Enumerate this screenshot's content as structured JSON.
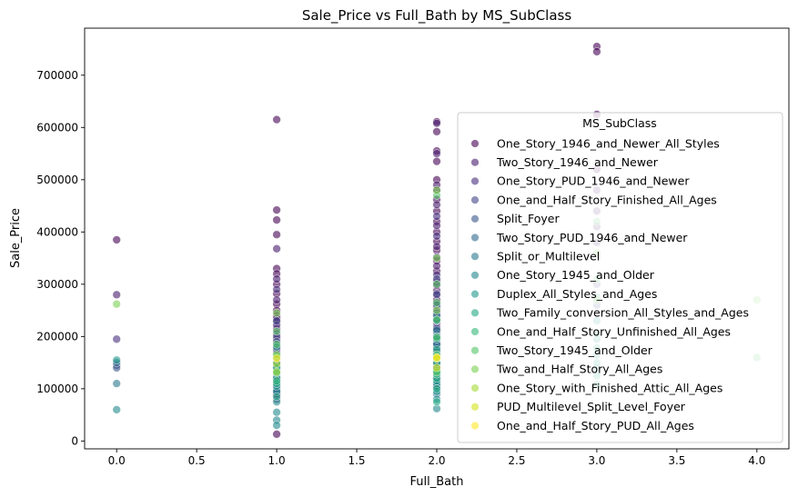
{
  "chart_data": {
    "type": "scatter",
    "title": "Sale_Price vs Full_Bath by MS_SubClass",
    "xlabel": "Full_Bath",
    "ylabel": "Sale_Price",
    "xlim": [
      -0.2,
      4.2
    ],
    "ylim": [
      -15000,
      790000
    ],
    "xticks": [
      "0.0",
      "0.5",
      "1.0",
      "1.5",
      "2.0",
      "2.5",
      "3.0",
      "3.5",
      "4.0"
    ],
    "yticks": [
      "0",
      "100000",
      "200000",
      "300000",
      "400000",
      "500000",
      "600000",
      "700000"
    ],
    "grid": false,
    "legend": {
      "title": "MS_SubClass",
      "placement": "right",
      "entries": [
        {
          "name": "One_Story_1946_and_Newer_All_Styles",
          "color": "#440154"
        },
        {
          "name": "Two_Story_1946_and_Newer",
          "color": "#481a6c"
        },
        {
          "name": "One_Story_PUD_1946_and_Newer",
          "color": "#472f7d"
        },
        {
          "name": "One_and_Half_Story_Finished_All_Ages",
          "color": "#414487"
        },
        {
          "name": "Split_Foyer",
          "color": "#39568c"
        },
        {
          "name": "Two_Story_PUD_1946_and_Newer",
          "color": "#31688e"
        },
        {
          "name": "Split_or_Multilevel",
          "color": "#2a788e"
        },
        {
          "name": "One_Story_1945_and_Older",
          "color": "#23888e"
        },
        {
          "name": "Duplex_All_Styles_and_Ages",
          "color": "#1f988b"
        },
        {
          "name": "Two_Family_conversion_All_Styles_and_Ages",
          "color": "#22a884"
        },
        {
          "name": "One_and_Half_Story_Unfinished_All_Ages",
          "color": "#35b779"
        },
        {
          "name": "Two_Story_1945_and_Older",
          "color": "#54c568"
        },
        {
          "name": "Two_and_Half_Story_All_Ages",
          "color": "#7ad151"
        },
        {
          "name": "One_Story_with_Finished_Attic_All_Ages",
          "color": "#a5db36"
        },
        {
          "name": "PUD_Multilevel_Split_Level_Foyer",
          "color": "#d2e21b"
        },
        {
          "name": "One_and_Half_Story_PUD_All_Ages",
          "color": "#fde725"
        }
      ]
    },
    "series": [
      {
        "name": "One_Story_1946_and_Newer_All_Styles",
        "points": [
          [
            0,
            385000
          ],
          [
            1,
            615000
          ],
          [
            1,
            442000
          ],
          [
            1,
            423000
          ],
          [
            1,
            395000
          ],
          [
            1,
            330000
          ],
          [
            1,
            320000
          ],
          [
            1,
            300000
          ],
          [
            1,
            282000
          ],
          [
            1,
            262000
          ],
          [
            1,
            250000
          ],
          [
            1,
            240000
          ],
          [
            1,
            228000
          ],
          [
            1,
            215000
          ],
          [
            1,
            195000
          ],
          [
            1,
            180000
          ],
          [
            1,
            165000
          ],
          [
            1,
            150000
          ],
          [
            1,
            140000
          ],
          [
            1,
            128000
          ],
          [
            1,
            118000
          ],
          [
            1,
            108000
          ],
          [
            1,
            98000
          ],
          [
            1,
            88000
          ],
          [
            1,
            13000
          ],
          [
            2,
            611000
          ],
          [
            2,
            592000
          ],
          [
            2,
            555000
          ],
          [
            2,
            535000
          ],
          [
            2,
            500000
          ],
          [
            2,
            480000
          ],
          [
            2,
            462000
          ],
          [
            2,
            440000
          ],
          [
            2,
            420000
          ],
          [
            2,
            400000
          ],
          [
            2,
            382000
          ],
          [
            2,
            365000
          ],
          [
            2,
            345000
          ],
          [
            2,
            325000
          ],
          [
            2,
            305000
          ],
          [
            2,
            288000
          ],
          [
            2,
            270000
          ],
          [
            2,
            255000
          ],
          [
            2,
            240000
          ],
          [
            2,
            225000
          ],
          [
            2,
            210000
          ],
          [
            2,
            195000
          ],
          [
            2,
            180000
          ],
          [
            2,
            165000
          ],
          [
            2,
            150000
          ],
          [
            2,
            135000
          ],
          [
            2,
            120000
          ],
          [
            2,
            105000
          ],
          [
            3,
            755000
          ],
          [
            3,
            745000
          ],
          [
            3,
            625000
          ],
          [
            3,
            520000
          ]
        ]
      },
      {
        "name": "Two_Story_1946_and_Newer",
        "points": [
          [
            0,
            280000
          ],
          [
            1,
            368000
          ],
          [
            1,
            310000
          ],
          [
            1,
            270000
          ],
          [
            1,
            235000
          ],
          [
            1,
            205000
          ],
          [
            1,
            160000
          ],
          [
            1,
            130000
          ],
          [
            1,
            90000
          ],
          [
            2,
            608000
          ],
          [
            2,
            550000
          ],
          [
            2,
            490000
          ],
          [
            2,
            452000
          ],
          [
            2,
            412000
          ],
          [
            2,
            372000
          ],
          [
            2,
            335000
          ],
          [
            2,
            298000
          ],
          [
            2,
            262000
          ],
          [
            2,
            232000
          ],
          [
            2,
            202000
          ],
          [
            2,
            172000
          ],
          [
            2,
            142000
          ],
          [
            3,
            480000
          ],
          [
            3,
            440000
          ],
          [
            3,
            410000
          ],
          [
            3,
            380000
          ]
        ]
      },
      {
        "name": "One_Story_PUD_1946_and_Newer",
        "points": [
          [
            0,
            195000
          ],
          [
            1,
            290000
          ],
          [
            1,
            222000
          ],
          [
            1,
            172000
          ],
          [
            2,
            430000
          ],
          [
            2,
            392000
          ],
          [
            2,
            352000
          ],
          [
            2,
            318000
          ],
          [
            2,
            282000
          ],
          [
            2,
            248000
          ],
          [
            2,
            218000
          ],
          [
            2,
            188000
          ],
          [
            2,
            158000
          ]
        ]
      },
      {
        "name": "One_and_Half_Story_Finished_All_Ages",
        "points": [
          [
            0,
            145000
          ],
          [
            1,
            230000
          ],
          [
            1,
            200000
          ],
          [
            1,
            175000
          ],
          [
            1,
            145000
          ],
          [
            1,
            120000
          ],
          [
            1,
            100000
          ],
          [
            1,
            80000
          ],
          [
            2,
            310000
          ],
          [
            2,
            280000
          ],
          [
            2,
            245000
          ],
          [
            2,
            215000
          ],
          [
            2,
            185000
          ],
          [
            2,
            155000
          ],
          [
            2,
            130000
          ],
          [
            3,
            300000
          ],
          [
            3,
            260000
          ]
        ]
      },
      {
        "name": "Split_Foyer",
        "points": [
          [
            0,
            140000
          ],
          [
            1,
            190000
          ],
          [
            1,
            168000
          ],
          [
            1,
            152000
          ],
          [
            1,
            138000
          ],
          [
            2,
            260000
          ],
          [
            2,
            232000
          ],
          [
            2,
            205000
          ],
          [
            2,
            178000
          ]
        ]
      },
      {
        "name": "Two_Story_PUD_1946_and_Newer",
        "points": [
          [
            0,
            150000
          ],
          [
            1,
            125000
          ],
          [
            1,
            112000
          ],
          [
            1,
            95000
          ],
          [
            2,
            200000
          ],
          [
            2,
            170000
          ],
          [
            2,
            148000
          ],
          [
            2,
            125000
          ],
          [
            2,
            105000
          ],
          [
            2,
            90000
          ]
        ]
      },
      {
        "name": "Split_or_Multilevel",
        "points": [
          [
            0,
            110000
          ],
          [
            1,
            158000
          ],
          [
            1,
            142000
          ],
          [
            1,
            122000
          ],
          [
            2,
            240000
          ],
          [
            2,
            212000
          ],
          [
            2,
            185000
          ],
          [
            2,
            162000
          ],
          [
            2,
            140000
          ]
        ]
      },
      {
        "name": "One_Story_1945_and_Older",
        "points": [
          [
            0,
            60000
          ],
          [
            1,
            180000
          ],
          [
            1,
            150000
          ],
          [
            1,
            120000
          ],
          [
            1,
            95000
          ],
          [
            1,
            75000
          ],
          [
            1,
            55000
          ],
          [
            1,
            40000
          ],
          [
            1,
            30000
          ],
          [
            2,
            200000
          ],
          [
            2,
            160000
          ],
          [
            2,
            110000
          ],
          [
            2,
            80000
          ],
          [
            2,
            62000
          ]
        ]
      },
      {
        "name": "Duplex_All_Styles_and_Ages",
        "points": [
          [
            0,
            155000
          ],
          [
            1,
            135000
          ],
          [
            1,
            105000
          ],
          [
            2,
            230000
          ],
          [
            2,
            195000
          ],
          [
            2,
            165000
          ],
          [
            2,
            135000
          ],
          [
            2,
            115000
          ],
          [
            2,
            95000
          ],
          [
            3,
            275000
          ],
          [
            3,
            230000
          ],
          [
            3,
            195000
          ],
          [
            3,
            165000
          ],
          [
            3,
            140000
          ]
        ]
      },
      {
        "name": "Two_Family_conversion_All_Styles_and_Ages",
        "points": [
          [
            1,
            140000
          ],
          [
            1,
            110000
          ],
          [
            1,
            85000
          ],
          [
            2,
            175000
          ],
          [
            2,
            150000
          ],
          [
            2,
            120000
          ],
          [
            2,
            100000
          ],
          [
            2,
            75000
          ],
          [
            3,
            205000
          ],
          [
            3,
            178000
          ],
          [
            3,
            150000
          ],
          [
            3,
            125000
          ],
          [
            3,
            108000
          ]
        ]
      },
      {
        "name": "One_and_Half_Story_Unfinished_All_Ages",
        "points": [
          [
            1,
            160000
          ],
          [
            1,
            130000
          ],
          [
            1,
            115000
          ],
          [
            2,
            128000
          ]
        ]
      },
      {
        "name": "Two_Story_1945_and_Older",
        "points": [
          [
            1,
            210000
          ],
          [
            1,
            185000
          ],
          [
            1,
            162000
          ],
          [
            2,
            470000
          ],
          [
            2,
            300000
          ],
          [
            2,
            265000
          ],
          [
            2,
            232000
          ],
          [
            2,
            198000
          ],
          [
            2,
            165000
          ],
          [
            2,
            132000
          ],
          [
            3,
            420000
          ],
          [
            3,
            310000
          ],
          [
            4,
            160000
          ]
        ]
      },
      {
        "name": "Two_and_Half_Story_All_Ages",
        "points": [
          [
            0,
            262000
          ],
          [
            1,
            245000
          ],
          [
            1,
            165000
          ],
          [
            2,
            480000
          ],
          [
            2,
            350000
          ],
          [
            2,
            250000
          ],
          [
            3,
            360000
          ],
          [
            3,
            270000
          ],
          [
            4,
            270000
          ]
        ]
      },
      {
        "name": "One_Story_with_Finished_Attic_All_Ages",
        "points": [
          [
            1,
            148000
          ],
          [
            1,
            132000
          ],
          [
            2,
            158000
          ]
        ]
      },
      {
        "name": "PUD_Multilevel_Split_Level_Foyer",
        "points": [
          [
            2,
            158000
          ],
          [
            2,
            140000
          ]
        ]
      },
      {
        "name": "One_and_Half_Story_PUD_All_Ages",
        "points": [
          [
            1,
            158000
          ],
          [
            2,
            160000
          ]
        ]
      }
    ]
  }
}
